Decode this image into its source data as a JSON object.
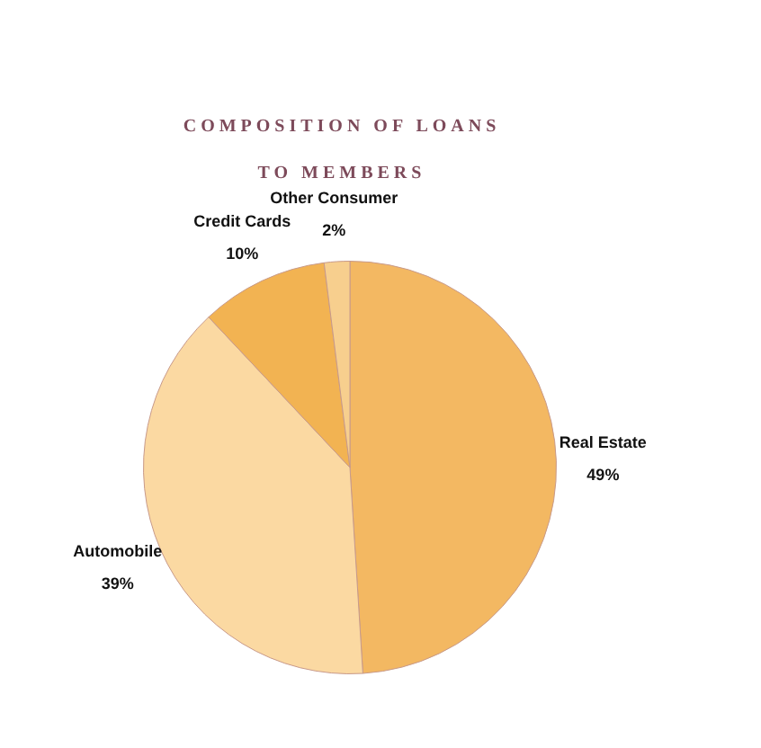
{
  "chart_data": {
    "type": "pie",
    "title": "COMPOSITION OF LOANS TO MEMBERS",
    "categories": [
      "Real Estate",
      "Automobile",
      "Credit Cards",
      "Other Consumer"
    ],
    "values": [
      49,
      39,
      10,
      2
    ],
    "value_labels": [
      "49%",
      "39%",
      "10%",
      "2%"
    ],
    "colors": [
      "#f3b862",
      "#fbd9a2",
      "#f2b352",
      "#f7cf8e"
    ],
    "legend": false
  }
}
